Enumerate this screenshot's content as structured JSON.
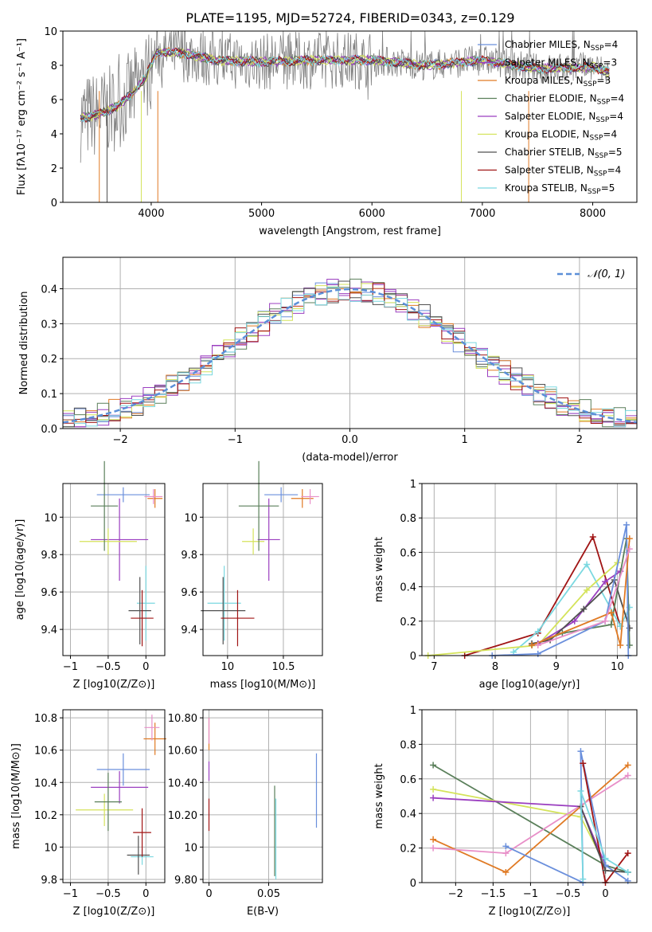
{
  "title": "PLATE=1195, MJD=52724, FIBERID=0343, z=0.129",
  "colors": {
    "Chabrier MILES": "#6a8fdc",
    "Salpeter MILES": "#9b3fc0",
    "Kroupa MILES": "#e07a24",
    "Chabrier ELODIE": "#5a7f5a",
    "Salpeter ELODIE": "#9b3fc0",
    "Kroupa ELODIE": "#d4e35a",
    "Chabrier STELIB": "#505050",
    "Salpeter STELIB": "#a01414",
    "Kroupa STELIB": "#7ad8e0",
    "pink": "#e88fc8",
    "gauss": "#5b8fd8",
    "grid": "#b0b0b0"
  },
  "legend_main": [
    {
      "pre": "Chabrier MILES, N",
      "sub": "SSP",
      "post": "=4",
      "color": "#6a8fdc"
    },
    {
      "pre": "Salpeter MILES, N",
      "sub": "SSP",
      "post": "=3",
      "color": "#9b3fc0"
    },
    {
      "pre": "Kroupa MILES, N",
      "sub": "SSP",
      "post": "=3",
      "color": "#e07a24"
    },
    {
      "pre": "Chabrier ELODIE, N",
      "sub": "SSP",
      "post": "=4",
      "color": "#5a7f5a"
    },
    {
      "pre": "Salpeter ELODIE, N",
      "sub": "SSP",
      "post": "=4",
      "color": "#9b3fc0"
    },
    {
      "pre": "Kroupa ELODIE, N",
      "sub": "SSP",
      "post": "=4",
      "color": "#d4e35a"
    },
    {
      "pre": "Chabrier STELIB, N",
      "sub": "SSP",
      "post": "=5",
      "color": "#505050"
    },
    {
      "pre": "Salpeter STELIB, N",
      "sub": "SSP",
      "post": "=4",
      "color": "#a01414"
    },
    {
      "pre": "Kroupa STELIB, N",
      "sub": "SSP",
      "post": "=5",
      "color": "#7ad8e0"
    }
  ],
  "chart_data": [
    {
      "type": "line",
      "id": "spectrum",
      "title": "PLATE=1195, MJD=52724, FIBERID=0343, z=0.129",
      "xlabel": "wavelength [Angstrom, rest frame]",
      "ylabel": "Flux [fλ10⁻¹⁷ erg cm⁻² s⁻¹ A⁻¹]",
      "xlim": [
        3200,
        8400
      ],
      "ylim": [
        0,
        10
      ],
      "xticks": [
        4000,
        5000,
        6000,
        7000,
        8000
      ],
      "yticks": [
        0,
        2,
        4,
        6,
        8,
        10
      ],
      "continuum": {
        "x": [
          3350,
          3500,
          3700,
          3850,
          3950,
          4050,
          4300,
          4600,
          5000,
          5500,
          6000,
          6500,
          7000,
          7500,
          8000,
          8150
        ],
        "y": [
          4.9,
          5.1,
          5.6,
          6.5,
          7.3,
          8.8,
          8.7,
          8.3,
          8.2,
          8.3,
          8.3,
          8.0,
          8.3,
          7.8,
          7.9,
          7.6
        ]
      },
      "grid": false,
      "legend_position": "top-right"
    },
    {
      "type": "area",
      "id": "residuals",
      "xlabel": "(data-model)/error",
      "ylabel": "Normed distribution",
      "xlim": [
        -2.5,
        2.5
      ],
      "ylim": [
        0,
        0.49
      ],
      "xticks": [
        -2,
        -1,
        0,
        1,
        2
      ],
      "yticks": [
        0.0,
        0.1,
        0.2,
        0.3,
        0.4
      ],
      "gauss_label": "𝒩(0, 1)",
      "grid": true,
      "legend_position": "top-right"
    },
    {
      "type": "scatter",
      "id": "age_vs_z",
      "xlabel": "Z [log10(Z/Z⊙)]",
      "ylabel": "age [log10(age/yr)]",
      "xlim": [
        -1.1,
        0.25
      ],
      "ylim": [
        9.26,
        10.18
      ],
      "xticks": [
        -1.0,
        -0.5,
        0.0
      ],
      "yticks": [
        9.4,
        9.6,
        9.8,
        10.0
      ],
      "points": [
        {
          "x": -0.3,
          "xerr": 0.35,
          "y": 10.12,
          "yerr": 0.04,
          "color": "#6a8fdc"
        },
        {
          "x": -0.35,
          "xerr": 0.38,
          "y": 9.88,
          "yerr": 0.22,
          "color": "#9b3fc0"
        },
        {
          "x": -0.5,
          "xerr": 0.38,
          "y": 9.87,
          "yerr": 0.07,
          "color": "#d4e35a"
        },
        {
          "x": -0.55,
          "xerr": 0.18,
          "y": 10.06,
          "yerr": 0.24,
          "color": "#5a7f5a"
        },
        {
          "x": 0.12,
          "xerr": 0.1,
          "y": 10.1,
          "yerr": 0.05,
          "color": "#e07a24"
        },
        {
          "x": 0.1,
          "xerr": 0.12,
          "y": 10.11,
          "yerr": 0.04,
          "color": "#e88fc8"
        },
        {
          "x": 0.0,
          "xerr": 0.12,
          "y": 9.54,
          "yerr": 0.2,
          "color": "#7ad8e0"
        },
        {
          "x": -0.08,
          "xerr": 0.15,
          "y": 9.5,
          "yerr": 0.18,
          "color": "#505050"
        },
        {
          "x": -0.05,
          "xerr": 0.15,
          "y": 9.46,
          "yerr": 0.15,
          "color": "#a01414"
        }
      ]
    },
    {
      "type": "scatter",
      "id": "age_vs_mass",
      "xlabel": "mass [log10(M/M⊙)]",
      "ylabel": "",
      "xlim": [
        9.78,
        10.85
      ],
      "ylim": [
        9.26,
        10.18
      ],
      "xticks": [
        10.0,
        10.5
      ],
      "yticks": [
        9.4,
        9.6,
        9.8,
        10.0
      ],
      "points": [
        {
          "x": 10.48,
          "xerr": 0.15,
          "y": 10.12,
          "yerr": 0.04,
          "color": "#6a8fdc"
        },
        {
          "x": 10.37,
          "xerr": 0.1,
          "y": 9.88,
          "yerr": 0.22,
          "color": "#9b3fc0"
        },
        {
          "x": 10.23,
          "xerr": 0.1,
          "y": 9.87,
          "yerr": 0.07,
          "color": "#d4e35a"
        },
        {
          "x": 10.28,
          "xerr": 0.18,
          "y": 10.06,
          "yerr": 0.24,
          "color": "#5a7f5a"
        },
        {
          "x": 10.67,
          "xerr": 0.1,
          "y": 10.1,
          "yerr": 0.05,
          "color": "#e07a24"
        },
        {
          "x": 10.74,
          "xerr": 0.08,
          "y": 10.11,
          "yerr": 0.04,
          "color": "#e88fc8"
        },
        {
          "x": 9.97,
          "xerr": 0.15,
          "y": 9.54,
          "yerr": 0.2,
          "color": "#7ad8e0"
        },
        {
          "x": 9.96,
          "xerr": 0.2,
          "y": 9.5,
          "yerr": 0.18,
          "color": "#505050"
        },
        {
          "x": 10.09,
          "xerr": 0.15,
          "y": 9.46,
          "yerr": 0.15,
          "color": "#a01414"
        }
      ]
    },
    {
      "type": "line",
      "id": "weight_vs_age",
      "xlabel": "age [log10(age/yr)]",
      "ylabel": "mass weight",
      "xlim": [
        6.8,
        10.32
      ],
      "ylim": [
        0,
        1.0
      ],
      "xticks": [
        7,
        8,
        9,
        10
      ],
      "yticks": [
        0.0,
        0.2,
        0.4,
        0.6,
        0.8,
        1.0
      ],
      "series": [
        {
          "color": "#a01414",
          "x": [
            7.5,
            8.7,
            9.6,
            10.05
          ],
          "y": [
            0.0,
            0.13,
            0.69,
            0.17
          ]
        },
        {
          "color": "#7ad8e0",
          "x": [
            8.3,
            8.7,
            9.5,
            10.05,
            10.2
          ],
          "y": [
            0.02,
            0.14,
            0.53,
            0.17,
            0.28
          ]
        },
        {
          "color": "#d4e35a",
          "x": [
            6.9,
            8.7,
            9.5,
            10.0
          ],
          "y": [
            0.0,
            0.06,
            0.38,
            0.54
          ]
        },
        {
          "color": "#9b3fc0",
          "x": [
            8.7,
            9.3,
            9.8,
            10.05
          ],
          "y": [
            0.07,
            0.2,
            0.43,
            0.49
          ]
        },
        {
          "color": "#5a7f5a",
          "x": [
            8.6,
            9.1,
            9.9,
            10.15,
            10.2
          ],
          "y": [
            0.06,
            0.13,
            0.18,
            0.68,
            0.06
          ]
        },
        {
          "color": "#505050",
          "x": [
            8.6,
            8.9,
            9.45,
            9.95,
            10.2
          ],
          "y": [
            0.07,
            0.09,
            0.27,
            0.44,
            0.16
          ]
        },
        {
          "color": "#6a8fdc",
          "x": [
            7.95,
            8.7,
            9.8,
            10.15,
            10.18
          ],
          "y": [
            0.0,
            0.01,
            0.2,
            0.76,
            0.0
          ]
        },
        {
          "color": "#e07a24",
          "x": [
            8.6,
            9.9,
            10.05,
            10.2
          ],
          "y": [
            0.06,
            0.25,
            0.06,
            0.68
          ]
        },
        {
          "color": "#e88fc8",
          "x": [
            8.7,
            9.8,
            10.2
          ],
          "y": [
            0.06,
            0.2,
            0.62
          ]
        }
      ]
    },
    {
      "type": "scatter",
      "id": "mass_vs_z",
      "xlabel": "Z [log10(Z/Z⊙)]",
      "ylabel": "mass [log10(M/M⊙)]",
      "xlim": [
        -1.1,
        0.25
      ],
      "ylim": [
        9.78,
        10.85
      ],
      "xticks": [
        -1.0,
        -0.5,
        0.0
      ],
      "yticks": [
        9.8,
        10.0,
        10.2,
        10.4,
        10.6,
        10.8
      ],
      "points": [
        {
          "x": -0.3,
          "xerr": 0.35,
          "y": 10.48,
          "yerr": 0.1,
          "color": "#6a8fdc"
        },
        {
          "x": -0.35,
          "xerr": 0.38,
          "y": 10.37,
          "yerr": 0.1,
          "color": "#9b3fc0"
        },
        {
          "x": -0.55,
          "xerr": 0.38,
          "y": 10.23,
          "yerr": 0.1,
          "color": "#d4e35a"
        },
        {
          "x": -0.5,
          "xerr": 0.18,
          "y": 10.28,
          "yerr": 0.18,
          "color": "#5a7f5a"
        },
        {
          "x": 0.12,
          "xerr": 0.15,
          "y": 10.67,
          "yerr": 0.1,
          "color": "#e07a24"
        },
        {
          "x": 0.08,
          "xerr": 0.1,
          "y": 10.74,
          "yerr": 0.08,
          "color": "#e88fc8"
        },
        {
          "x": -0.05,
          "xerr": 0.15,
          "y": 9.94,
          "yerr": 0.05,
          "color": "#7ad8e0"
        },
        {
          "x": -0.1,
          "xerr": 0.15,
          "y": 9.95,
          "yerr": 0.12,
          "color": "#505050"
        },
        {
          "x": -0.05,
          "xerr": 0.12,
          "y": 10.09,
          "yerr": 0.15,
          "color": "#a01414"
        }
      ]
    },
    {
      "type": "scatter",
      "id": "mass_vs_ebv",
      "xlabel": "E(B-V)",
      "ylabel": "",
      "xlim": [
        -0.005,
        0.095
      ],
      "ylim": [
        9.78,
        10.85
      ],
      "xticks": [
        0.0,
        0.05
      ],
      "yticks": [
        9.8,
        10.0,
        10.2,
        10.4,
        10.6,
        10.8
      ],
      "points": [
        {
          "x": 0.0,
          "y": 10.7,
          "yerr": 0.1,
          "color": "#e07a24"
        },
        {
          "x": 0.0,
          "y": 10.72,
          "yerr": 0.08,
          "color": "#e88fc8"
        },
        {
          "x": 0.0,
          "y": 10.47,
          "yerr": 0.06,
          "color": "#9b3fc0"
        },
        {
          "x": 0.0,
          "y": 10.2,
          "yerr": 0.1,
          "color": "#a01414"
        },
        {
          "x": 0.055,
          "y": 10.1,
          "yerr": 0.28,
          "color": "#5a7f5a"
        },
        {
          "x": 0.056,
          "y": 10.05,
          "yerr": 0.25,
          "color": "#7ad8e0"
        },
        {
          "x": 0.09,
          "y": 10.35,
          "yerr": 0.23,
          "color": "#6a8fdc"
        }
      ]
    },
    {
      "type": "line",
      "id": "weight_vs_z",
      "xlabel": "Z [log10(Z/Z⊙)]",
      "ylabel": "mass weight",
      "xlim": [
        -2.45,
        0.42
      ],
      "ylim": [
        0,
        1.0
      ],
      "xticks": [
        -2.0,
        -1.5,
        -1.0,
        -0.5,
        0.0
      ],
      "yticks": [
        0.0,
        0.2,
        0.4,
        0.6,
        0.8,
        1.0
      ],
      "series": [
        {
          "color": "#5a7f5a",
          "x": [
            -2.3,
            0.0,
            0.3
          ],
          "y": [
            0.68,
            0.1,
            0.06
          ]
        },
        {
          "color": "#d4e35a",
          "x": [
            -2.3,
            -0.33,
            0.0
          ],
          "y": [
            0.54,
            0.38,
            0.1
          ]
        },
        {
          "color": "#9b3fc0",
          "x": [
            -2.3,
            -0.33,
            0.0
          ],
          "y": [
            0.49,
            0.44,
            0.1
          ]
        },
        {
          "color": "#e07a24",
          "x": [
            -2.3,
            -1.33,
            0.3
          ],
          "y": [
            0.25,
            0.06,
            0.68
          ]
        },
        {
          "color": "#e88fc8",
          "x": [
            -2.3,
            -1.33,
            0.3
          ],
          "y": [
            0.2,
            0.17,
            0.62
          ]
        },
        {
          "color": "#6a8fdc",
          "x": [
            -1.33,
            -0.3,
            -0.33,
            0.0,
            0.3
          ],
          "y": [
            0.21,
            0.0,
            0.76,
            0.1,
            0.01
          ]
        },
        {
          "color": "#a01414",
          "x": [
            -0.3,
            0.0,
            0.3
          ],
          "y": [
            0.69,
            0.0,
            0.17
          ]
        },
        {
          "color": "#505050",
          "x": [
            -0.33,
            0.0,
            0.3
          ],
          "y": [
            0.44,
            0.07,
            0.06
          ]
        },
        {
          "color": "#7ad8e0",
          "x": [
            -0.3,
            -0.33,
            0.0,
            0.3
          ],
          "y": [
            0.02,
            0.53,
            0.14,
            0.06
          ]
        }
      ]
    }
  ]
}
